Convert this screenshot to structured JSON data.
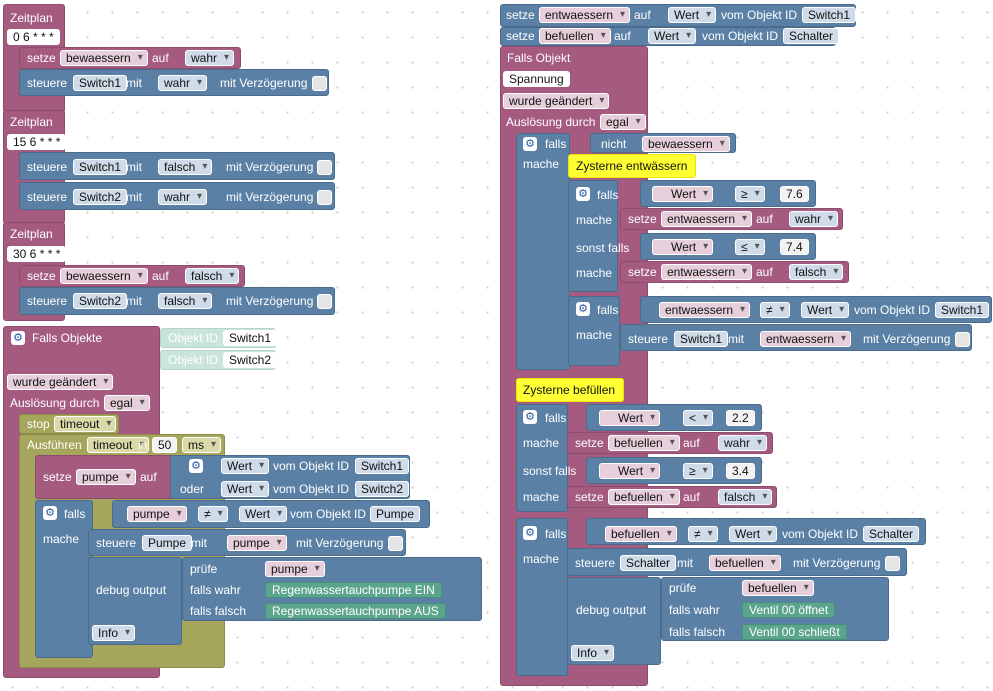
{
  "opts": {
    "wahr": "wahr",
    "falsch": "falsch",
    "wert": "Wert",
    "obj_id": "vom Objekt ID",
    "mit": "mit",
    "mit_verz": "mit Verzögerung",
    "steuere": "steuere",
    "setze": "setze",
    "auf": "auf",
    "falls": "falls",
    "mache": "mache",
    "sonst_falls": "sonst falls",
    "oder": "oder",
    "nicht": "nicht",
    "neq": "≠",
    "gte": "≥",
    "lte": "≤",
    "lt": "<",
    "debug": "debug output",
    "pruefe": "prüfe",
    "falls_wahr": "falls wahr",
    "falls_falsch": "falls falsch",
    "info": "Info",
    "objekt_id": "Objekt ID"
  },
  "left": {
    "sched1": {
      "title": "Zeitplan",
      "cron": "0 6 * * *",
      "var": "bewaessern",
      "dev": "Switch1"
    },
    "sched2": {
      "title": "Zeitplan",
      "cron": "15 6 * * *",
      "dev1": "Switch1",
      "dev2": "Switch2"
    },
    "sched3": {
      "title": "Zeitplan",
      "cron": "30 6 * * *",
      "var": "bewaessern",
      "dev": "Switch2"
    },
    "trigger": {
      "title": "Falls Objekte",
      "obj1": "Switch1",
      "obj2": "Switch2",
      "changed": "wurde geändert",
      "by_label": "Auslösung durch",
      "by": "egal"
    },
    "stop": {
      "label": "stop",
      "timer": "timeout"
    },
    "run": {
      "label": "Ausführen",
      "timer": "timeout",
      "in": "in",
      "ms_value": "50",
      "unit": "ms"
    },
    "set_pumpe": {
      "var": "pumpe",
      "dev1": "Switch1",
      "dev2": "Switch2"
    },
    "if_pumpe": {
      "var": "pumpe",
      "obj": "Pumpe",
      "ctrl_dev": "Pumpe",
      "str_on": "Regenwassertauchpumpe EIN",
      "str_off": "Regenwassertauchpumpe AUS"
    }
  },
  "right": {
    "set_top": {
      "var1": "entwaessern",
      "dev1": "Switch1",
      "var2": "befuellen",
      "dev2": "Schalter"
    },
    "trigger": {
      "title": "Falls Objekt",
      "obj": "Spannung",
      "changed": "wurde geändert",
      "by_label": "Auslösung durch",
      "by": "egal"
    },
    "if1": {
      "var": "bewaessern"
    },
    "comment1": "Zysterne entwässern",
    "inner1": {
      "v1": "7.6",
      "v2": "7.4",
      "var": "entwaessern"
    },
    "inner2": {
      "var": "entwaessern",
      "obj": "Switch1",
      "dev": "Switch1"
    },
    "comment2": "Zysterne befüllen",
    "if2": {
      "v1": "2.2",
      "v2": "3.4",
      "var": "befuellen"
    },
    "if3": {
      "var": "befuellen",
      "obj": "Schalter",
      "dev": "Schalter",
      "str_on": "Ventil 00 öffnet",
      "str_off": "Ventil 00 schließt"
    }
  }
}
